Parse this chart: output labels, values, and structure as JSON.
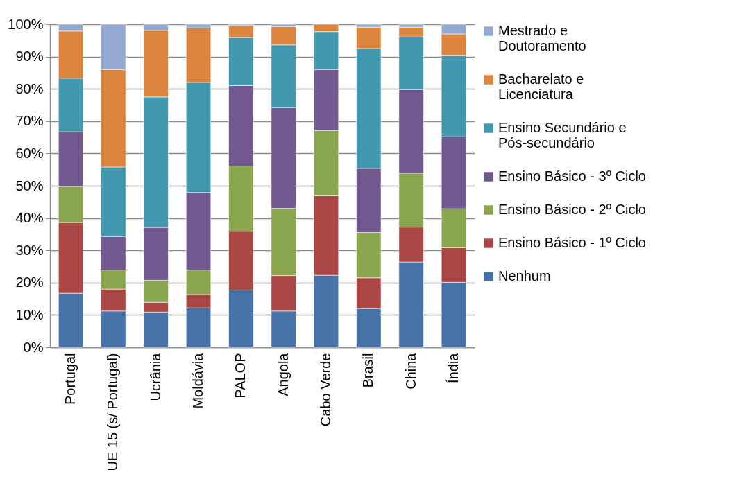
{
  "chart_data": {
    "type": "bar",
    "stacked": true,
    "categories": [
      "Portugal",
      "UE 15 (s/ Portugal)",
      "Ucrânia",
      "Moldávia",
      "PALOP",
      "Angola",
      "Cabo Verde",
      "Brasil",
      "China",
      "Índia"
    ],
    "series": [
      {
        "name": "Nenhum",
        "color": "#4572a7",
        "values": [
          16.7,
          11.2,
          10.9,
          12.2,
          17.7,
          11.2,
          22.3,
          12.0,
          26.4,
          20.1
        ]
      },
      {
        "name": "Ensino Básico - 1º Ciclo",
        "color": "#aa4643",
        "values": [
          21.9,
          6.8,
          3.0,
          4.1,
          18.2,
          11.0,
          24.6,
          9.5,
          10.8,
          10.7
        ]
      },
      {
        "name": "Ensino Básico - 2º Ciclo",
        "color": "#89a54e",
        "values": [
          11.2,
          5.9,
          6.8,
          7.6,
          20.2,
          20.8,
          20.2,
          14.0,
          16.7,
          12.1
        ]
      },
      {
        "name": "Ensino Básico - 3º Ciclo",
        "color": "#71588f",
        "values": [
          16.9,
          10.4,
          16.4,
          24.0,
          24.9,
          31.2,
          18.9,
          19.9,
          25.9,
          22.3
        ]
      },
      {
        "name": "Ensino Secundário e Pós-secundário",
        "color": "#4198af",
        "values": [
          16.6,
          21.5,
          40.4,
          34.1,
          14.9,
          19.4,
          11.7,
          37.1,
          16.3,
          25.1
        ]
      },
      {
        "name": "Bacharelato e Licenciatura",
        "color": "#db843d",
        "values": [
          14.6,
          30.2,
          20.6,
          16.9,
          3.7,
          5.7,
          2.3,
          6.6,
          3.0,
          6.7
        ]
      },
      {
        "name": "Mestrado e Doutoramento",
        "color": "#93a9cf",
        "values": [
          2.1,
          14.0,
          1.9,
          1.1,
          0.4,
          0.7,
          null,
          0.9,
          0.9,
          3.0
        ]
      }
    ],
    "ylim": [
      0,
      100
    ],
    "yticks": [
      {
        "value": 0,
        "label": "0%"
      },
      {
        "value": 10,
        "label": "10%"
      },
      {
        "value": 20,
        "label": "20%"
      },
      {
        "value": 30,
        "label": "30%"
      },
      {
        "value": 40,
        "label": "40%"
      },
      {
        "value": 50,
        "label": "50%"
      },
      {
        "value": 60,
        "label": "60%"
      },
      {
        "value": 70,
        "label": "70%"
      },
      {
        "value": 80,
        "label": "80%"
      },
      {
        "value": 90,
        "label": "90%"
      },
      {
        "value": 100,
        "label": "100%"
      }
    ],
    "grid": "y",
    "legend": "right"
  }
}
